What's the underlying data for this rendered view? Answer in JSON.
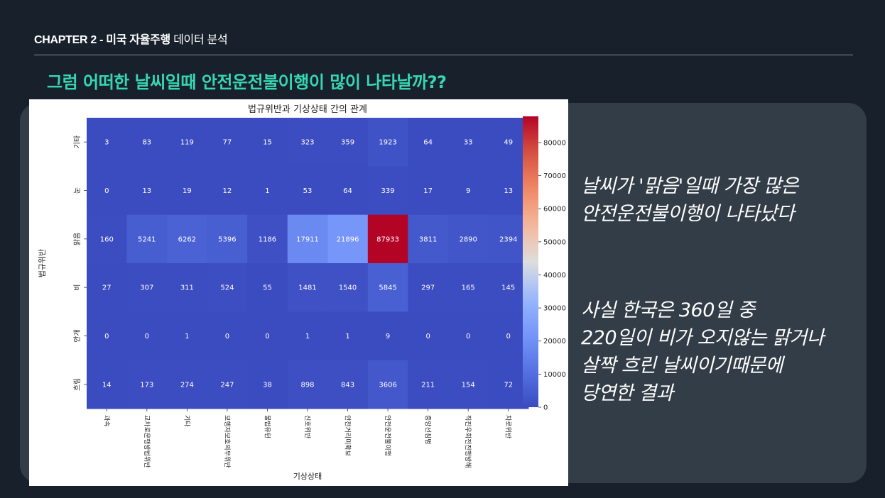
{
  "header": {
    "chapter_bold": "CHAPTER 2 - 미국 자율주행",
    "chapter_light": " 데이터 분석",
    "headline": "그럼 어떠한 날씨일때 안전운전불이행이 많이 나타날까??"
  },
  "notes": {
    "note1": [
      "날씨가 '맑음'일때 가장 많은",
      "안전운전불이행이 나타났다"
    ],
    "note2": [
      "사실 한국은 360일 중",
      "220일이 비가 오지않는 맑거나",
      "살짝 흐린 날씨이기때문에",
      "당연한 결과"
    ]
  },
  "chart_data": {
    "type": "heatmap",
    "title": "법규위반과 기상상태 간의 관계",
    "xlabel": "기상상태",
    "ylabel": "법규위반",
    "x": [
      "과속",
      "교차로운행방법위반",
      "기타",
      "보행자보호의무위반",
      "불법유턴",
      "신호위반",
      "안전거리미확보",
      "안전운전불이행",
      "중앙선침범",
      "직진우회전진행방해",
      "차로위반"
    ],
    "y": [
      "기타",
      "눈",
      "맑음",
      "비",
      "안개",
      "흐림"
    ],
    "values": [
      [
        3,
        83,
        119,
        77,
        15,
        323,
        359,
        1923,
        64,
        33,
        49
      ],
      [
        0,
        13,
        19,
        12,
        1,
        53,
        64,
        339,
        17,
        9,
        13
      ],
      [
        160,
        5241,
        6262,
        5396,
        1186,
        17911,
        21896,
        87933,
        3811,
        2890,
        2394
      ],
      [
        27,
        307,
        311,
        524,
        55,
        1481,
        1540,
        5845,
        297,
        165,
        145
      ],
      [
        0,
        0,
        1,
        0,
        0,
        1,
        1,
        9,
        0,
        0,
        0
      ],
      [
        14,
        173,
        274,
        247,
        38,
        898,
        843,
        3606,
        211,
        154,
        72
      ]
    ],
    "colorbar": {
      "range": [
        0,
        87933
      ],
      "ticks": [
        "0",
        "10000",
        "20000",
        "30000",
        "40000",
        "50000",
        "60000",
        "70000",
        "80000"
      ],
      "colormap": "coolwarm"
    }
  }
}
